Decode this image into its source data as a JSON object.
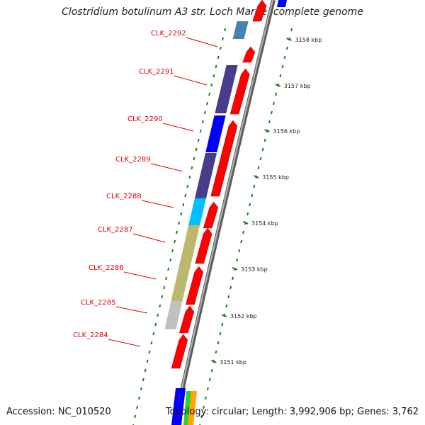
{
  "title": "Clostridium botulinum A3 str. Loch Maree, complete genome",
  "footer": {
    "accession": "Accession: NC_010520",
    "summary": "Topology: circular; Length: 3,992,906 bp; Genes: 3,762"
  },
  "colors": {
    "backbone": "#7f7f7f",
    "cds": "#ff0000",
    "label": "#e00000",
    "tick": "#1a7f1a",
    "cog": [
      "#4682b4",
      "#483d8b",
      "#0000ff",
      "#00bfff",
      "#bdb76b",
      "#c0c0c0",
      "#ffa500",
      "#32cd32"
    ]
  },
  "scale_ticks": [
    "3158 kbp",
    "3157 kbp",
    "3156 kbp",
    "3155 kbp",
    "3154 kbp",
    "3153 kbp",
    "3152 kbp",
    "3151 kbp"
  ],
  "genes": [
    {
      "label": "CLK_2292"
    },
    {
      "label": "CLK_2291"
    },
    {
      "label": "CLK_2290"
    },
    {
      "label": "CLK_2289"
    },
    {
      "label": "CLK_2288"
    },
    {
      "label": "CLK_2287"
    },
    {
      "label": "CLK_2286"
    },
    {
      "label": "CLK_2285"
    },
    {
      "label": "CLK_2284"
    }
  ]
}
